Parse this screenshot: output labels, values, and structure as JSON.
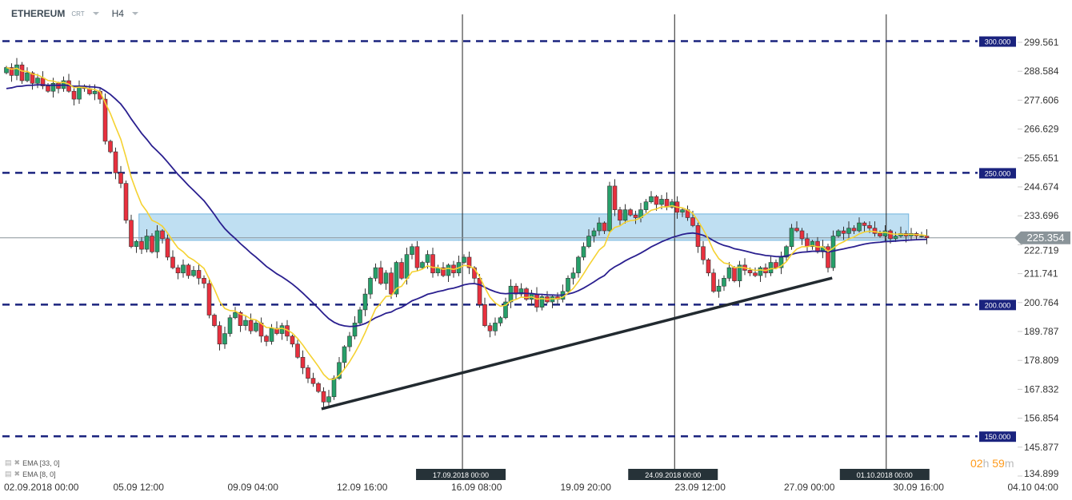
{
  "header": {
    "symbol": "ETHEREUM",
    "subtype": "CRT",
    "timeframe": "H4"
  },
  "indicators": [
    {
      "label": "EMA [33, 0]",
      "period": 33,
      "color": "#2a1f8f"
    },
    {
      "label": "EMA [8, 0]",
      "period": 8,
      "color": "#f5d232"
    }
  ],
  "timer": {
    "hours": "02",
    "h": "h",
    "minutes": "59",
    "m": "m"
  },
  "colors": {
    "up": "#26a06a",
    "down": "#e8303e",
    "level": "#1a237e",
    "zone": "#a9d4ee",
    "trend": "#222a30"
  },
  "chart_data": {
    "type": "candlestick",
    "title": "ETHEREUM CRT H4",
    "timeframe": "H4",
    "ylim": [
      134.899,
      299.561
    ],
    "y_ticks": [
      "299.561",
      "288.584",
      "277.606",
      "266.629",
      "255.651",
      "244.674",
      "233.696",
      "222.719",
      "211.741",
      "200.764",
      "189.787",
      "178.809",
      "167.832",
      "156.854",
      "145.877",
      "134.899"
    ],
    "x_ticks": [
      {
        "label": "02.09.2018  00:00",
        "index": 0
      },
      {
        "label": "05.09  12:00",
        "index": 21
      },
      {
        "label": "09.09  04:00",
        "index": 43
      },
      {
        "label": "12.09  16:00",
        "index": 64
      },
      {
        "label": "16.09  08:00",
        "index": 86
      },
      {
        "label": "19.09  20:00",
        "index": 107
      },
      {
        "label": "23.09  12:00",
        "index": 129
      },
      {
        "label": "27.09  00:00",
        "index": 150
      },
      {
        "label": "30.09  16:00",
        "index": 171
      },
      {
        "label": "04.10  04:00",
        "index": 193
      }
    ],
    "closes": [
      290,
      287,
      291,
      285,
      288,
      284,
      286,
      283,
      281,
      284,
      282,
      285,
      281,
      278,
      283,
      282,
      280,
      281,
      278,
      262,
      258,
      250,
      246,
      232,
      222,
      224,
      221,
      226,
      220,
      228,
      225,
      218,
      214,
      212,
      215,
      211,
      213,
      210,
      208,
      196,
      192,
      185,
      189,
      195,
      197,
      192,
      194,
      190,
      193,
      188,
      186,
      191,
      189,
      192,
      188,
      185,
      180,
      176,
      172,
      170,
      167,
      163,
      165,
      172,
      178,
      184,
      188,
      193,
      198,
      204,
      210,
      214,
      208,
      212,
      204,
      216,
      210,
      219,
      222,
      214,
      216,
      219,
      212,
      214,
      211,
      215,
      212,
      216,
      218,
      214,
      210,
      200,
      192,
      190,
      193,
      195,
      201,
      207,
      204,
      206,
      202,
      204,
      199,
      203,
      201,
      203,
      202,
      205,
      210,
      212,
      218,
      222,
      226,
      228,
      231,
      228,
      245,
      236,
      232,
      236,
      234,
      233,
      236,
      239,
      241,
      238,
      240,
      237,
      239,
      235,
      236,
      233,
      230,
      222,
      217,
      212,
      205,
      207,
      210,
      214,
      209,
      215,
      213,
      212,
      211,
      214,
      212,
      216,
      214,
      218,
      222,
      229,
      228,
      225,
      222,
      224,
      220,
      222,
      214,
      226,
      228,
      227,
      229,
      228,
      231,
      230,
      229,
      227,
      226,
      228,
      225,
      226,
      227,
      226,
      227,
      226,
      226,
      225.354
    ],
    "levels": [
      {
        "price": 300,
        "label": "300.000"
      },
      {
        "price": 250,
        "label": "250.000"
      },
      {
        "price": 200,
        "label": "200.000"
      },
      {
        "price": 150,
        "label": "150.000"
      }
    ],
    "zone": {
      "from_index": 25.5,
      "to_index": 173.5,
      "low": 224.4,
      "high": 234.4
    },
    "trendline": {
      "from": {
        "index": 60.6,
        "price": 160.4
      },
      "to": {
        "index": 158.8,
        "price": 210.1
      }
    },
    "current_price": {
      "value": 225.354,
      "label": "225.354"
    },
    "vertical_markers": [
      {
        "label": "17.09.2018 00:00",
        "index": 87.7
      },
      {
        "label": "24.09.2018 00:00",
        "index": 128.5
      },
      {
        "label": "01.10.2018 00:00",
        "index": 169.2
      }
    ]
  }
}
